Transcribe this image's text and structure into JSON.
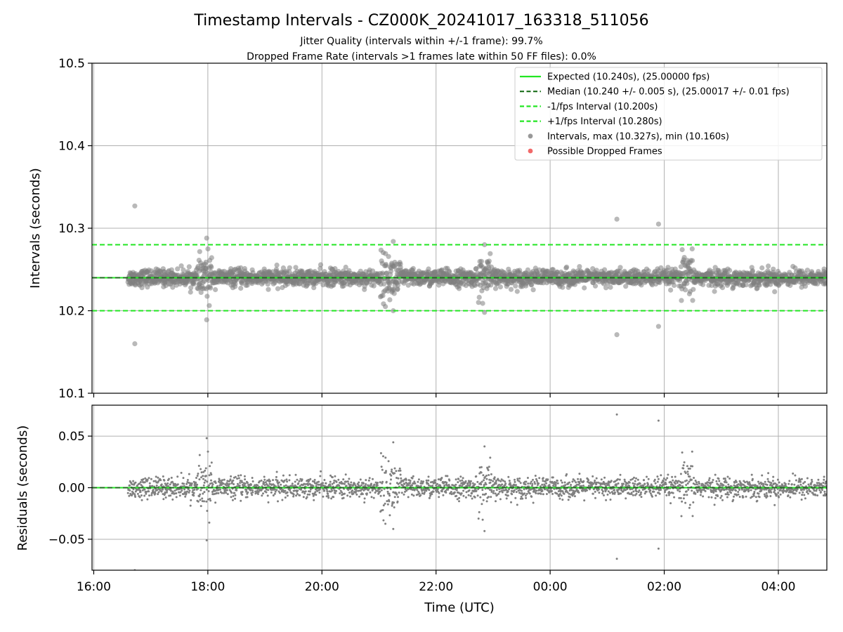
{
  "chart_data": {
    "type": "scatter",
    "title": "Timestamp Intervals - CZ000K_20241017_163318_511056",
    "subtitles": [
      "Jitter Quality (intervals within +/-1 frame): 99.7%",
      "Dropped Frame Rate (intervals >1 frames late within 50 FF files): 0.0%"
    ],
    "xlabel": "Time (UTC)",
    "x_range_hours": [
      15.97,
      28.85
    ],
    "x_ticks": [
      {
        "value": 16,
        "label": "16:00"
      },
      {
        "value": 18,
        "label": "18:00"
      },
      {
        "value": 20,
        "label": "20:00"
      },
      {
        "value": 22,
        "label": "22:00"
      },
      {
        "value": 24,
        "label": "00:00"
      },
      {
        "value": 26,
        "label": "02:00"
      },
      {
        "value": 28,
        "label": "04:00"
      }
    ],
    "grid": true,
    "colors": {
      "expected": "#22e622",
      "median": "#1a6e1a",
      "interval_lines": "#22e622",
      "points": "#808080",
      "dropped": "#ee4444"
    },
    "top_panel": {
      "ylabel": "Intervals (seconds)",
      "ylim": [
        10.1,
        10.5
      ],
      "y_ticks": [
        10.1,
        10.2,
        10.3,
        10.4,
        10.5
      ],
      "y_tick_labels": [
        "10.1",
        "10.2",
        "10.3",
        "10.4",
        "10.5"
      ],
      "expected": 10.24,
      "median": 10.24,
      "minus_interval": 10.2,
      "plus_interval": 10.28,
      "outliers": [
        {
          "x": 16.72,
          "y": 10.327
        },
        {
          "x": 16.72,
          "y": 10.16
        },
        {
          "x": 17.98,
          "y": 10.288
        },
        {
          "x": 17.98,
          "y": 10.189
        },
        {
          "x": 25.17,
          "y": 10.311
        },
        {
          "x": 25.17,
          "y": 10.171
        },
        {
          "x": 25.9,
          "y": 10.305
        },
        {
          "x": 25.9,
          "y": 10.181
        },
        {
          "x": 21.25,
          "y": 10.284
        },
        {
          "x": 21.25,
          "y": 10.2
        },
        {
          "x": 22.85,
          "y": 10.28
        },
        {
          "x": 22.85,
          "y": 10.198
        }
      ]
    },
    "bottom_panel": {
      "ylabel": "Residuals (seconds)",
      "ylim": [
        -0.08,
        0.08
      ],
      "y_ticks": [
        -0.05,
        0.0,
        0.05
      ],
      "y_tick_labels": [
        "−0.05",
        "0.00",
        "0.05"
      ],
      "zero_line": 0.0
    },
    "series": [
      {
        "name": "Expected (10.240s), (25.00000 fps)",
        "style": "solid-line",
        "color": "#22e622"
      },
      {
        "name": "Median (10.240 +/- 0.005 s), (25.00017 +/- 0.01 fps)",
        "style": "dashed-line",
        "color": "#1a6e1a"
      },
      {
        "name": "-1/fps Interval (10.200s)",
        "style": "dashed-line",
        "color": "#22e622"
      },
      {
        "name": "+1/fps Interval (10.280s)",
        "style": "dashed-line",
        "color": "#22e622"
      },
      {
        "name": "Intervals, max (10.327s), min (10.160s)",
        "style": "marker",
        "color": "#808080"
      },
      {
        "name": "Possible Dropped Frames",
        "style": "marker",
        "color": "#ee4444"
      }
    ],
    "data_generation": {
      "x_start": 16.6,
      "x_end": 28.85,
      "count": 2600,
      "base_sigma": 0.005,
      "bursts": [
        {
          "center": 17.95,
          "width": 0.12,
          "sigma": 0.014
        },
        {
          "center": 21.2,
          "width": 0.18,
          "sigma": 0.014
        },
        {
          "center": 22.85,
          "width": 0.12,
          "sigma": 0.013
        },
        {
          "center": 26.4,
          "width": 0.12,
          "sigma": 0.013
        }
      ]
    },
    "legend_position": "top-right"
  }
}
